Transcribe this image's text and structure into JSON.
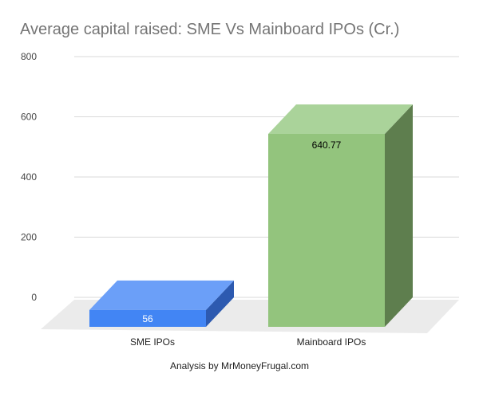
{
  "chart_data": {
    "type": "bar",
    "title": "Average capital raised: SME Vs Mainboard IPOs (Cr.)",
    "xlabel": "Analysis by MrMoneyFrugal.com",
    "ylabel": "",
    "categories": [
      "SME IPOs",
      "Mainboard IPOs"
    ],
    "values": [
      56,
      640.77
    ],
    "data_labels": [
      "56",
      "640.77"
    ],
    "ylim": [
      0,
      800
    ],
    "yticks": [
      0,
      200,
      400,
      600,
      800
    ],
    "grid": true,
    "legend": "none",
    "colors": {
      "front": [
        "#4285f4",
        "#93c47d"
      ],
      "top": [
        "#6b9ff8",
        "#aad39a"
      ],
      "side": [
        "#2d5ab0",
        "#5e7e4e"
      ],
      "floor": "#ebebeb",
      "gridline": "#d9d9d9",
      "label_text": [
        "#ffffff",
        "#000000"
      ]
    }
  }
}
